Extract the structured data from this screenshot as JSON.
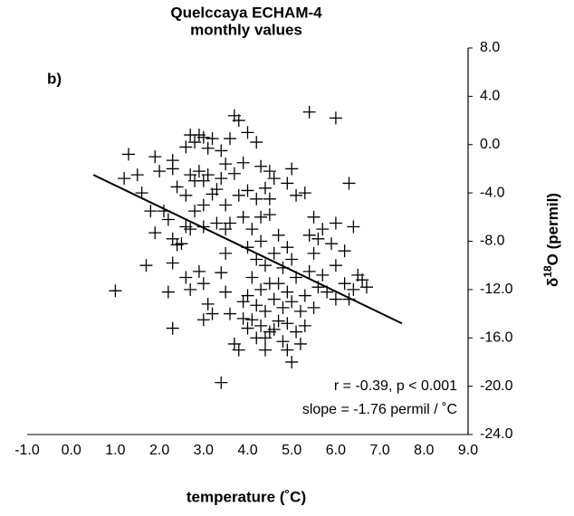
{
  "chart_data": {
    "type": "scatter",
    "title": "Quelccaya ECHAM-4",
    "subtitle": "monthly values",
    "x_label": "temperature (˚C)",
    "y_label": {
      "symbol": "δ",
      "superscript": "18",
      "text": "O (permil)"
    },
    "panel_label": "b)",
    "annotations": [
      "r = -0.39, p < 0.001",
      "slope = -1.76 permil / ˚C"
    ],
    "color": "#000000",
    "xlim": [
      -1,
      9
    ],
    "xticks": [
      {
        "value": -1,
        "label": "-1.0"
      },
      {
        "value": 0,
        "label": "0.0"
      },
      {
        "value": 1,
        "label": "1.0"
      },
      {
        "value": 2,
        "label": "2.0"
      },
      {
        "value": 3,
        "label": "3.0"
      },
      {
        "value": 4,
        "label": "4.0"
      },
      {
        "value": 5,
        "label": "5.0"
      },
      {
        "value": 6,
        "label": "6.0"
      },
      {
        "value": 7,
        "label": "7.0"
      },
      {
        "value": 8,
        "label": "8.0"
      },
      {
        "value": 9,
        "label": "9.0"
      }
    ],
    "ylim": [
      -24,
      8
    ],
    "yticks": [
      {
        "value": 8,
        "label": "8.0"
      },
      {
        "value": 4,
        "label": "4.0"
      },
      {
        "value": 0,
        "label": "0.0"
      },
      {
        "value": -4,
        "label": "-4.0"
      },
      {
        "value": -8,
        "label": "-8.0"
      },
      {
        "value": -12,
        "label": "-12.0"
      },
      {
        "value": -16,
        "label": "-16.0"
      },
      {
        "value": -20,
        "label": "-20.0"
      },
      {
        "value": -24,
        "label": "-24.0"
      }
    ],
    "trend_line": {
      "x": [
        0.5,
        7.5
      ],
      "y": [
        -2.5,
        -14.8
      ]
    },
    "x": [
      1.3,
      1.2,
      1.6,
      1.5,
      1.9,
      2.0,
      2.3,
      1.8,
      2.1,
      2.2,
      1.9,
      2.3,
      2.4,
      2.5,
      2.6,
      2.4,
      2.3,
      2.6,
      2.8,
      2.7,
      2.9,
      3.0,
      3.1,
      3.2,
      3.4,
      3.5,
      3.1,
      2.9,
      2.7,
      2.8,
      3.0,
      3.3,
      3.4,
      3.2,
      3.0,
      2.8,
      2.6,
      2.7,
      3.0,
      3.3,
      3.5,
      3.7,
      3.7,
      3.8,
      3.6,
      4.0,
      4.2,
      3.9,
      4.3,
      4.5,
      4.6,
      4.4,
      4.0,
      3.8,
      4.2,
      4.5,
      3.9,
      3.6,
      3.5,
      4.3,
      4.1,
      4.5,
      5.0,
      4.9,
      5.1,
      5.3,
      5.5,
      5.4,
      6.0,
      6.3,
      6.0,
      6.4,
      5.7,
      5.6,
      5.9,
      6.2,
      1.0,
      2.2,
      2.3,
      1.7,
      2.3,
      2.6,
      2.7,
      3.0,
      3.1,
      3.0,
      3.2,
      2.9,
      3.4,
      3.5,
      3.4,
      3.7,
      3.8,
      3.9,
      3.6,
      3.5,
      4.0,
      4.2,
      4.4,
      4.1,
      4.3,
      4.0,
      4.2,
      4.4,
      4.1,
      4.3,
      4.5,
      4.4,
      4.6,
      4.7,
      4.8,
      4.6,
      4.7,
      4.8,
      4.6,
      4.9,
      5.0,
      5.1,
      4.9,
      5.0,
      5.2,
      4.9,
      5.1,
      4.8,
      4.9,
      5.0,
      4.4,
      4.2,
      4.0,
      3.9,
      5.3,
      5.4,
      5.5,
      5.6,
      5.8,
      5.7,
      6.0,
      6.2,
      6.4,
      6.5,
      6.6,
      6.7,
      6.3,
      6.0,
      5.5,
      5.3,
      5.2,
      4.5,
      4.7,
      5.4,
      4.3
    ],
    "values": [
      -0.8,
      -2.8,
      -4.0,
      -2.5,
      -1.0,
      -2.2,
      -2.0,
      -5.5,
      -5.5,
      -6.2,
      -7.3,
      -7.8,
      -8.3,
      -8.2,
      -4.2,
      -3.5,
      -1.3,
      -0.2,
      0.2,
      0.8,
      0.8,
      0.6,
      -0.3,
      0.5,
      -0.5,
      -1.6,
      -2.5,
      -2.2,
      -2.5,
      -3.0,
      -3.0,
      -3.7,
      -2.8,
      -4.1,
      -5.0,
      -5.5,
      -6.8,
      -7.0,
      -6.8,
      -6.5,
      -5.0,
      -2.4,
      2.4,
      2.0,
      0.5,
      1.0,
      0.2,
      -1.5,
      -1.8,
      -2.2,
      -2.8,
      -3.6,
      -3.8,
      -4.2,
      -4.5,
      -4.5,
      -6.0,
      -6.5,
      -7.0,
      -6.0,
      -7.0,
      -5.8,
      -2.0,
      -3.2,
      -4.2,
      -4.0,
      -6.0,
      2.7,
      2.2,
      -3.2,
      -6.5,
      -6.8,
      -7.0,
      -7.8,
      -8.2,
      -8.8,
      -12.1,
      -12.2,
      -15.2,
      -10.0,
      -9.8,
      -11.0,
      -12.0,
      -11.5,
      -13.2,
      -14.5,
      -14.0,
      -10.5,
      -10.6,
      -12.2,
      -19.7,
      -16.5,
      -17.0,
      -14.4,
      -14.0,
      -9.0,
      -8.5,
      -9.5,
      -10.0,
      -11.0,
      -12.0,
      -12.5,
      -13.3,
      -13.8,
      -14.5,
      -15.0,
      -15.5,
      -16.0,
      -15.3,
      -14.6,
      -13.5,
      -12.8,
      -11.5,
      -10.2,
      -9.0,
      -8.5,
      -9.5,
      -11.0,
      -12.2,
      -13.0,
      -13.8,
      -14.8,
      -15.5,
      -16.3,
      -17.0,
      -18.0,
      -17.0,
      -16.0,
      -15.2,
      -13.0,
      -12.5,
      -10.5,
      -9.0,
      -11.8,
      -12.2,
      -10.8,
      -10.0,
      -11.5,
      -12.0,
      -10.8,
      -11.2,
      -11.8,
      -12.8,
      -12.8,
      -13.5,
      -15.0,
      -16.5,
      -11.5,
      -7.5,
      -7.5,
      -8.0
    ]
  }
}
